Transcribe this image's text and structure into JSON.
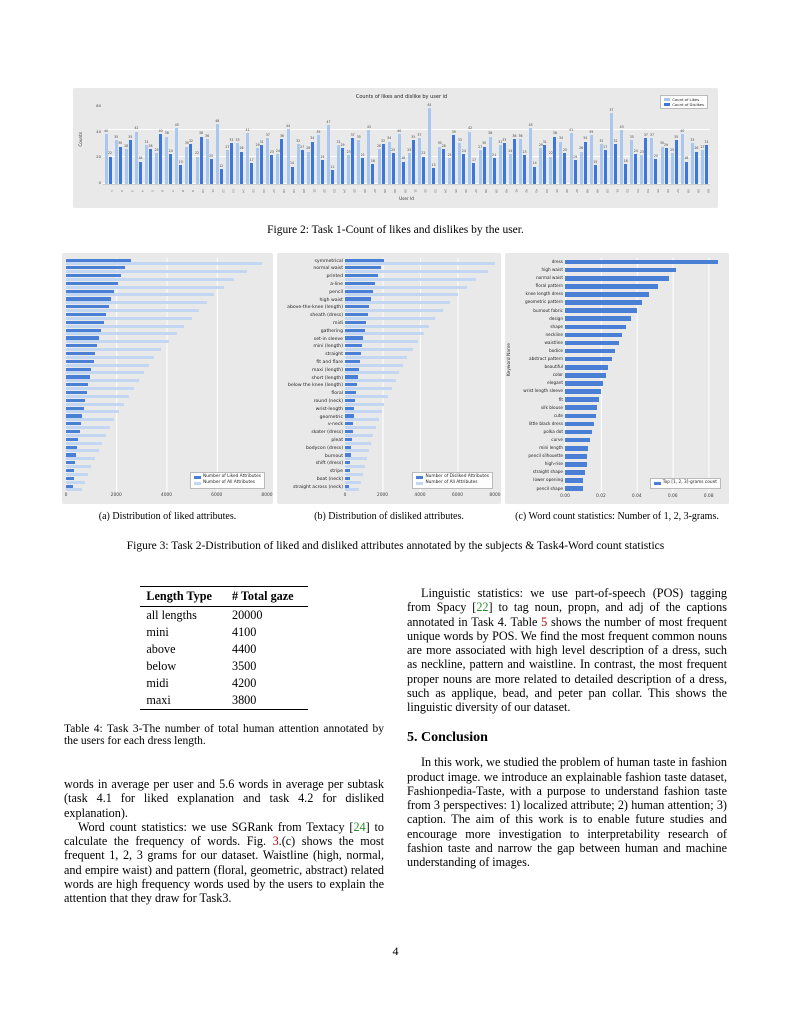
{
  "page": {
    "number": "4"
  },
  "figure2": {
    "caption": "Figure 2: Task 1-Count of likes and dislikes by the user.",
    "chart_data": {
      "type": "bar",
      "title": "Counts of likes and dislike by user id",
      "xlabel": "User Id",
      "ylabel": "Counts",
      "ylim": [
        0,
        65
      ],
      "yticks": [
        0,
        20,
        40,
        60
      ],
      "legend_position": "top-right",
      "series": [
        {
          "name": "Count of Likes",
          "color": "#a9c7ef",
          "values": [
            40,
            35,
            28,
            42,
            31,
            25,
            38,
            45,
            30,
            22,
            36,
            48,
            27,
            33,
            41,
            29,
            37,
            24,
            44,
            32,
            26,
            39,
            47,
            31,
            23,
            35,
            43,
            28,
            34,
            40,
            25,
            37,
            61,
            30,
            21,
            33,
            42,
            27,
            38,
            31,
            24,
            36,
            45,
            29,
            22,
            34,
            41,
            26,
            39,
            32,
            57,
            43,
            35,
            23,
            37,
            30,
            25,
            40,
            33,
            27
          ]
        },
        {
          "name": "Count of Dislikes",
          "color": "#3d77d9",
          "values": [
            22,
            30,
            35,
            18,
            28,
            40,
            24,
            15,
            32,
            38,
            20,
            12,
            33,
            26,
            17,
            31,
            23,
            36,
            14,
            27,
            34,
            19,
            11,
            29,
            37,
            21,
            16,
            32,
            25,
            18,
            35,
            22,
            13,
            28,
            39,
            24,
            17,
            30,
            21,
            33,
            36,
            23,
            14,
            31,
            38,
            25,
            19,
            34,
            15,
            27,
            32,
            16,
            24,
            37,
            20,
            29,
            35,
            18,
            26,
            31
          ]
        }
      ]
    }
  },
  "figure3": {
    "caption": "Figure 3: Task 2-Distribution of liked and disliked attributes annotated by the subjects & Task4-Word count statistics",
    "a": {
      "caption": "(a) Distribution of liked attributes.",
      "chart_data": {
        "type": "bar",
        "orientation": "horizontal",
        "xlim": [
          0,
          8000
        ],
        "xticks": [
          "0",
          "2000",
          "4000",
          "6000",
          "8000"
        ],
        "legend_position": "bottom-right",
        "series": [
          {
            "name": "Number of Liked Attributes",
            "color": "#4a7fd6",
            "values": [
              2600,
              2350,
              2200,
              2050,
              1900,
              1800,
              1700,
              1600,
              1500,
              1400,
              1300,
              1250,
              1150,
              1100,
              1000,
              950,
              880,
              820,
              760,
              700,
              640,
              590,
              540,
              490,
              450,
              410,
              370,
              330,
              300,
              270
            ]
          },
          {
            "name": "Number of All Attributes",
            "color": "#c3d6f2",
            "values": [
              7800,
              7200,
              6700,
              6300,
              5900,
              5600,
              5300,
              5000,
              4700,
              4400,
              4100,
              3800,
              3500,
              3300,
              3100,
              2900,
              2700,
              2500,
              2300,
              2100,
              1900,
              1750,
              1600,
              1450,
              1300,
              1150,
              1000,
              880,
              760,
              650
            ]
          }
        ]
      }
    },
    "b": {
      "caption": "(b) Distribution of disliked attributes.",
      "chart_data": {
        "type": "bar",
        "orientation": "horizontal",
        "categories": [
          "symmetrical",
          "normal waist",
          "printed",
          "a-line",
          "pencil",
          "high waist",
          "above-the-knee (length)",
          "sheath (dress)",
          "midi",
          "gathering",
          "set-in sleeve",
          "mini (length)",
          "straight",
          "fit and flare",
          "maxi (length)",
          "short (length)",
          "below the knee (length)",
          "floral",
          "round (neck)",
          "wrist-length",
          "geometric",
          "v-neck",
          "skater (dress)",
          "pleat",
          "bodycon (dress)",
          "burnout",
          "shift (dress)",
          "stripe",
          "boat (neck)",
          "straight across (neck)"
        ],
        "xlim": [
          0,
          8000
        ],
        "xticks": [
          "0",
          "2000",
          "4000",
          "6000",
          "8000"
        ],
        "legend_position": "bottom-right",
        "series": [
          {
            "name": "Number of Disliked Attributes",
            "color": "#4a7fd6",
            "values": [
              2100,
              1900,
              1750,
              1600,
              1500,
              1400,
              1300,
              1200,
              1120,
              1040,
              970,
              900,
              840,
              780,
              720,
              670,
              620,
              580,
              540,
              500,
              460,
              430,
              400,
              370,
              340,
              310,
              290,
              260,
              240,
              220
            ]
          },
          {
            "name": "Number of All Attributes",
            "color": "#c3d6f2",
            "values": [
              8000,
              7600,
              7000,
              6500,
              6000,
              5600,
              5200,
              4800,
              4500,
              4200,
              3900,
              3600,
              3300,
              3100,
              2900,
              2700,
              2500,
              2300,
              2100,
              1950,
              1800,
              1650,
              1500,
              1380,
              1260,
              1150,
              1040,
              940,
              850,
              760
            ]
          }
        ]
      }
    },
    "c": {
      "caption": "(c) Word count statistics: Number of 1, 2, 3-grams.",
      "chart_data": {
        "type": "bar",
        "orientation": "horizontal",
        "ylabel": "Keyword Name",
        "categories": [
          "dress",
          "high waist",
          "normal waist",
          "floral pattern",
          "knee length dress",
          "geometric pattern",
          "burnout fabric",
          "design",
          "shape",
          "neckline",
          "waistline",
          "bodice",
          "abstract pattern",
          "beautiful",
          "color",
          "elegant",
          "wrist length sleeve",
          "fit",
          "silk blouse",
          "cute",
          "little black dress",
          "polka dot",
          "curve",
          "mini length",
          "pencil silhouette",
          "high-rise",
          "straight shape",
          "lower opening",
          "pencil shape"
        ],
        "xlim": [
          0,
          0.088
        ],
        "xticks": [
          "0.00",
          "0.02",
          "0.04",
          "0.06",
          "0.08"
        ],
        "legend_position": "bottom-right",
        "series": [
          {
            "name": "Top [1, 2, 3]-grams count",
            "color": "#4a7fd6",
            "values": [
              0.085,
              0.062,
              0.058,
              0.052,
              0.047,
              0.043,
              0.04,
              0.037,
              0.034,
              0.032,
              0.03,
              0.028,
              0.026,
              0.024,
              0.023,
              0.021,
              0.02,
              0.019,
              0.018,
              0.017,
              0.016,
              0.015,
              0.014,
              0.013,
              0.012,
              0.012,
              0.011,
              0.01,
              0.01
            ]
          }
        ]
      }
    }
  },
  "table4": {
    "headers": [
      "Length Type",
      "# Total gaze"
    ],
    "rows": [
      [
        "all lengths",
        "20000"
      ],
      [
        "mini",
        "4100"
      ],
      [
        "above",
        "4400"
      ],
      [
        "below",
        "3500"
      ],
      [
        "midi",
        "4200"
      ],
      [
        "maxi",
        "3800"
      ]
    ],
    "caption": "Table 4: Task 3-The number of total human attention annotated by the users for each dress length."
  },
  "left_column": {
    "para1": [
      {
        "t": "words in average per user and 5.6 words in average per subtask (task 4.1 for liked explanation and task 4.2 for disliked explanation)."
      }
    ],
    "para2": [
      {
        "t": "Word count statistics: we use SGRank from Textacy ["
      },
      {
        "t": "24",
        "c": "cite"
      },
      {
        "t": "] to calculate the frequency of words. Fig. "
      },
      {
        "t": "3",
        "c": "ref"
      },
      {
        "t": ".(c) shows the most frequent 1, 2, 3 grams for our dataset. Waistline (high, normal, and empire waist) and pattern (floral, geometric, abstract) related words are high frequency words used by the users to explain the attention that they draw for Task3."
      }
    ]
  },
  "right_column": {
    "para1": [
      {
        "t": "Linguistic statistics: we use part-of-speech (POS) tagging from Spacy ["
      },
      {
        "t": "22",
        "c": "cite"
      },
      {
        "t": "] to tag noun, propn, and adj of the captions annotated in Task 4. Table "
      },
      {
        "t": "5",
        "c": "ref"
      },
      {
        "t": " shows the number of most frequent unique words by POS. We find the most frequent common nouns are more associated with high level description of a dress, such as neckline, pattern and waistline. In contrast, the most frequent proper nouns are more related to detailed description of a dress, such as applique, bead, and peter pan collar. This shows the linguistic diversity of our dataset."
      }
    ],
    "heading": "5. Conclusion",
    "para2": [
      {
        "t": "In this work, we studied the problem of human taste in fashion product image. we introduce an explainable fashion taste dataset, Fashionpedia-Taste, with a purpose to understand fashion taste from 3 perspectives: 1) localized attribute; 2) human attention; 3) caption. The aim of this work is to enable future studies and encourage more investigation to interpretability research of fashion taste and narrow the gap between human and machine understanding of images."
      }
    ]
  }
}
